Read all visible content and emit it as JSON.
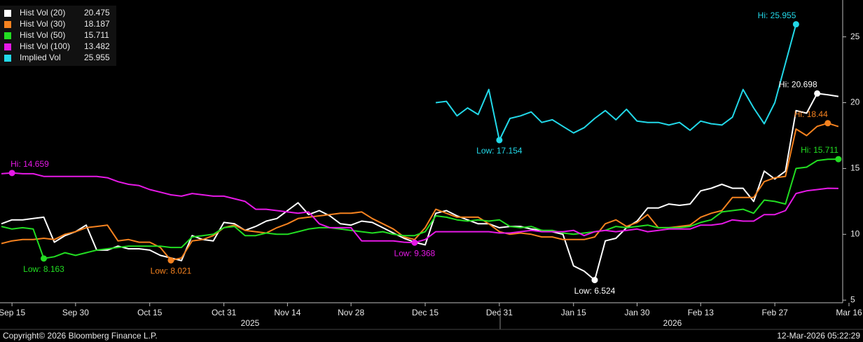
{
  "chart_data": {
    "type": "line",
    "categories": [
      null,
      "Sep 15",
      null,
      null,
      null,
      null,
      null,
      "Sep 30",
      null,
      null,
      null,
      null,
      null,
      null,
      "Oct 15",
      null,
      null,
      null,
      null,
      null,
      null,
      "Oct 31",
      null,
      null,
      null,
      null,
      null,
      "Nov 14",
      null,
      null,
      null,
      null,
      null,
      "Nov 28",
      null,
      null,
      null,
      null,
      null,
      null,
      "Dec 15",
      null,
      null,
      null,
      null,
      null,
      null,
      "Dec 31",
      null,
      null,
      null,
      null,
      null,
      null,
      "Jan 15",
      null,
      null,
      null,
      null,
      null,
      "Jan 30",
      null,
      null,
      null,
      null,
      null,
      "Feb 13",
      null,
      null,
      null,
      null,
      null,
      null,
      "Feb 27",
      null,
      null,
      null,
      null,
      null,
      null,
      "Mar 16"
    ],
    "x_groups": [
      "2025",
      "2026"
    ],
    "ylim": [
      4.8,
      27.8
    ],
    "yticks": [
      5,
      10,
      15,
      20,
      25
    ],
    "series": [
      {
        "name": "Hist Vol (20)",
        "color": "#ffffff",
        "legend_value": 20.475,
        "values": [
          10.8,
          11.1,
          11.1,
          11.2,
          11.3,
          9.4,
          9.9,
          10.2,
          10.7,
          8.8,
          8.8,
          9.1,
          8.9,
          8.9,
          8.8,
          8.4,
          8.2,
          8.0,
          9.9,
          9.6,
          9.5,
          10.9,
          10.8,
          10.3,
          10.6,
          11.0,
          11.2,
          11.8,
          12.4,
          11.5,
          11.8,
          11.4,
          10.8,
          10.7,
          11.0,
          10.9,
          10.5,
          10.1,
          9.7,
          9.4,
          9.2,
          11.6,
          11.8,
          11.4,
          11.1,
          10.8,
          10.8,
          10.5,
          10.6,
          10.6,
          10.4,
          10.3,
          10.2,
          10.0,
          7.6,
          7.2,
          6.524,
          9.5,
          9.7,
          10.5,
          11.0,
          12.0,
          12.0,
          12.3,
          12.2,
          12.3,
          13.3,
          13.5,
          13.8,
          13.5,
          13.5,
          12.5,
          14.8,
          14.2,
          14.8,
          19.4,
          19.2,
          20.698,
          20.6,
          20.475,
          null
        ]
      },
      {
        "name": "Hist Vol (30)",
        "color": "#f5821f",
        "legend_value": 18.187,
        "values": [
          9.3,
          9.5,
          9.6,
          9.6,
          9.7,
          9.6,
          10.0,
          10.2,
          10.5,
          10.6,
          10.7,
          9.5,
          9.6,
          9.4,
          9.4,
          9.0,
          8.021,
          8.2,
          9.5,
          9.6,
          9.9,
          10.5,
          10.7,
          10.3,
          10.2,
          10.1,
          10.5,
          10.8,
          11.2,
          11.3,
          11.4,
          11.5,
          11.6,
          11.6,
          11.7,
          11.2,
          10.8,
          10.4,
          9.8,
          9.6,
          10.5,
          11.9,
          11.6,
          11.3,
          11.3,
          11.3,
          10.8,
          10.2,
          10.0,
          10.1,
          10.0,
          9.8,
          9.8,
          9.6,
          9.6,
          9.6,
          9.8,
          10.8,
          11.1,
          10.6,
          10.9,
          11.5,
          10.5,
          10.5,
          10.6,
          10.7,
          11.3,
          11.6,
          11.8,
          12.8,
          12.8,
          12.8,
          14.0,
          14.3,
          14.4,
          18.0,
          17.5,
          18.2,
          18.44,
          18.187,
          null
        ]
      },
      {
        "name": "Hist Vol (50)",
        "color": "#22dd22",
        "legend_value": 15.711,
        "values": [
          10.6,
          10.4,
          10.5,
          10.4,
          8.163,
          8.3,
          8.6,
          8.4,
          8.6,
          8.8,
          8.9,
          9.0,
          9.1,
          9.1,
          9.1,
          9.1,
          9.0,
          9.0,
          9.8,
          9.9,
          10.0,
          10.5,
          10.6,
          9.9,
          9.9,
          10.1,
          10.0,
          10.0,
          10.2,
          10.4,
          10.5,
          10.5,
          10.4,
          10.3,
          10.2,
          10.1,
          10.2,
          10.0,
          9.9,
          9.9,
          10.2,
          11.4,
          11.3,
          11.1,
          11.0,
          11.1,
          11.0,
          11.1,
          10.6,
          10.5,
          10.6,
          10.3,
          10.3,
          10.1,
          10.0,
          10.1,
          10.2,
          10.3,
          10.6,
          10.5,
          10.6,
          10.7,
          10.5,
          10.5,
          10.5,
          10.6,
          10.9,
          11.1,
          11.7,
          11.8,
          11.9,
          11.6,
          12.6,
          12.5,
          12.3,
          15.0,
          15.1,
          15.6,
          15.7,
          15.711,
          null
        ]
      },
      {
        "name": "Hist Vol (100)",
        "color": "#e619e6",
        "legend_value": 13.482,
        "values": [
          14.6,
          14.659,
          14.6,
          14.6,
          14.4,
          14.4,
          14.4,
          14.4,
          14.4,
          14.4,
          14.3,
          14.0,
          13.8,
          13.7,
          13.4,
          13.2,
          13.0,
          12.9,
          13.1,
          13.0,
          12.9,
          12.9,
          12.7,
          12.5,
          11.9,
          11.9,
          11.8,
          11.7,
          11.6,
          11.7,
          10.8,
          10.5,
          10.5,
          10.5,
          9.5,
          9.5,
          9.5,
          9.5,
          9.4,
          9.368,
          9.6,
          10.2,
          10.2,
          10.2,
          10.2,
          10.2,
          10.2,
          10.1,
          10.1,
          10.2,
          10.3,
          10.2,
          10.2,
          10.2,
          10.3,
          9.9,
          10.2,
          10.3,
          10.2,
          10.3,
          10.4,
          10.2,
          10.3,
          10.4,
          10.4,
          10.4,
          10.7,
          10.7,
          10.8,
          11.1,
          11.0,
          11.0,
          11.5,
          11.5,
          11.8,
          13.1,
          13.3,
          13.4,
          13.5,
          13.482,
          null
        ]
      },
      {
        "name": "Implied Vol",
        "color": "#22d8e8",
        "legend_value": 25.955,
        "values": [
          null,
          null,
          null,
          null,
          null,
          null,
          null,
          null,
          null,
          null,
          null,
          null,
          null,
          null,
          null,
          null,
          null,
          null,
          null,
          null,
          null,
          null,
          null,
          null,
          null,
          null,
          null,
          null,
          null,
          null,
          null,
          null,
          null,
          null,
          null,
          null,
          null,
          null,
          null,
          null,
          null,
          20.0,
          20.1,
          19.0,
          19.6,
          19.1,
          21.0,
          17.154,
          18.8,
          19.0,
          19.3,
          18.5,
          18.7,
          18.2,
          17.7,
          18.1,
          18.8,
          19.4,
          18.7,
          19.5,
          18.6,
          18.5,
          18.5,
          18.3,
          18.5,
          17.9,
          18.6,
          18.4,
          18.3,
          18.9,
          21.0,
          19.6,
          18.4,
          20.0,
          23.0,
          25.955,
          null,
          null,
          null,
          null,
          null
        ]
      }
    ],
    "annotations": [
      {
        "series": "Implied Vol",
        "text": "Hi: 25.955",
        "value": 25.955
      },
      {
        "series": "Implied Vol",
        "text": "Low: 17.154",
        "value": 17.154
      },
      {
        "series": "Hist Vol (20)",
        "text": "Hi: 20.698",
        "value": 20.698
      },
      {
        "series": "Hist Vol (20)",
        "text": "Low: 6.524",
        "value": 6.524
      },
      {
        "series": "Hist Vol (30)",
        "text": "Hi: 18.44",
        "value": 18.44
      },
      {
        "series": "Hist Vol (30)",
        "text": "Low: 8.021",
        "value": 8.021
      },
      {
        "series": "Hist Vol (50)",
        "text": "Hi: 15.711",
        "value": 15.711
      },
      {
        "series": "Hist Vol (50)",
        "text": "Low: 8.163",
        "value": 8.163
      },
      {
        "series": "Hist Vol (100)",
        "text": "Hi: 14.659",
        "value": 14.659
      },
      {
        "series": "Hist Vol (100)",
        "text": "Low: 9.368",
        "value": 9.368
      }
    ]
  },
  "footer": {
    "copyright": "Copyright© 2026 Bloomberg Finance L.P.",
    "timestamp": "12-Mar-2026 05:22:29"
  }
}
